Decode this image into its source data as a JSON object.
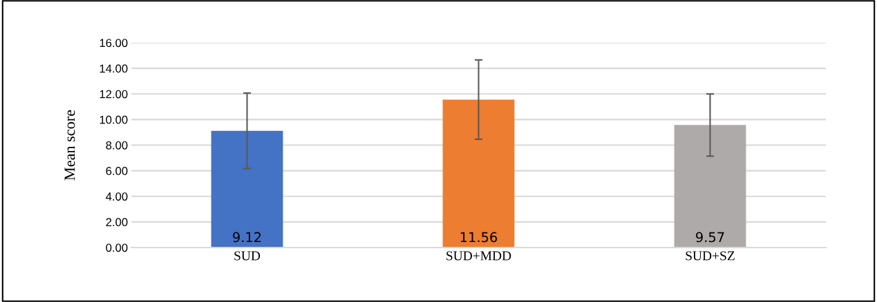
{
  "chart_data": {
    "type": "bar",
    "ylabel": "Mean score",
    "categories": [
      "SUD",
      "SUD+MDD",
      "SUD+SZ"
    ],
    "values": [
      9.12,
      11.56,
      9.57
    ],
    "colors": [
      "#4472c4",
      "#ed7d31",
      "#aeaaaa"
    ],
    "errors": [
      2.95,
      3.1,
      2.43
    ],
    "ylim": [
      0,
      16
    ],
    "yticks": [
      {
        "value": 0,
        "label": "0.00"
      },
      {
        "value": 2,
        "label": "2.00"
      },
      {
        "value": 4,
        "label": "4.00"
      },
      {
        "value": 6,
        "label": "6.00"
      },
      {
        "value": 8,
        "label": "8.00"
      },
      {
        "value": 10,
        "label": "10.00"
      },
      {
        "value": 12,
        "label": "12.00"
      },
      {
        "value": 14,
        "label": "14.00"
      },
      {
        "value": 16,
        "label": "16.00"
      }
    ],
    "grid": "y",
    "data_labels": true
  }
}
